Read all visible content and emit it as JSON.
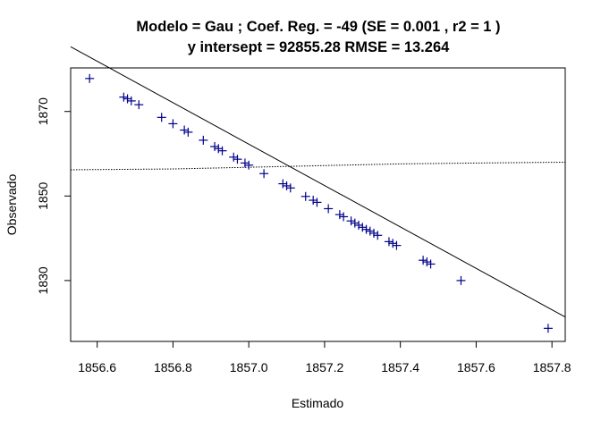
{
  "chart_data": {
    "type": "scatter",
    "title_line1": "Modelo =  Gau ; Coef. Reg. =  -49  (SE =  0.001 , r2 =  1 )",
    "title_line2": "y intersept =  92855.28 RMSE =  13.264",
    "xlabel": "Estimado",
    "ylabel": "Observado",
    "xlim": [
      1856.53,
      1857.835
    ],
    "ylim": [
      1815.6,
      1880.3
    ],
    "x_ticks": [
      1856.6,
      1856.8,
      1857.0,
      1857.2,
      1857.4,
      1857.6,
      1857.8
    ],
    "x_tick_labels": [
      "1856.6",
      "1856.8",
      "1857.0",
      "1857.2",
      "1857.4",
      "1857.6",
      "1857.8"
    ],
    "y_ticks": [
      1830,
      1850,
      1870
    ],
    "y_tick_labels": [
      "1830",
      "1850",
      "1870"
    ],
    "fit_line": {
      "intercept": 92855.28,
      "slope": -49
    },
    "smooth_line": [
      [
        1856.53,
        1856.2
      ],
      [
        1856.8,
        1856.4
      ],
      [
        1857.0,
        1856.8
      ],
      [
        1857.2,
        1857.2
      ],
      [
        1857.4,
        1857.6
      ],
      [
        1857.6,
        1857.8
      ],
      [
        1857.835,
        1858.0
      ]
    ],
    "points": [
      {
        "x": 1856.58,
        "y": 1877.8
      },
      {
        "x": 1856.67,
        "y": 1873.4
      },
      {
        "x": 1856.68,
        "y": 1873.0
      },
      {
        "x": 1856.69,
        "y": 1872.5
      },
      {
        "x": 1856.71,
        "y": 1871.6
      },
      {
        "x": 1856.77,
        "y": 1868.6
      },
      {
        "x": 1856.8,
        "y": 1867.1
      },
      {
        "x": 1856.83,
        "y": 1865.6
      },
      {
        "x": 1856.84,
        "y": 1865.1
      },
      {
        "x": 1856.88,
        "y": 1863.2
      },
      {
        "x": 1856.91,
        "y": 1861.7
      },
      {
        "x": 1856.92,
        "y": 1861.2
      },
      {
        "x": 1856.93,
        "y": 1860.7
      },
      {
        "x": 1856.96,
        "y": 1859.2
      },
      {
        "x": 1856.97,
        "y": 1858.7
      },
      {
        "x": 1856.99,
        "y": 1857.8
      },
      {
        "x": 1857.0,
        "y": 1857.3
      },
      {
        "x": 1857.04,
        "y": 1855.3
      },
      {
        "x": 1857.09,
        "y": 1852.9
      },
      {
        "x": 1857.1,
        "y": 1852.4
      },
      {
        "x": 1857.11,
        "y": 1851.9
      },
      {
        "x": 1857.15,
        "y": 1849.9
      },
      {
        "x": 1857.17,
        "y": 1849.0
      },
      {
        "x": 1857.18,
        "y": 1848.5
      },
      {
        "x": 1857.21,
        "y": 1847.0
      },
      {
        "x": 1857.24,
        "y": 1845.6
      },
      {
        "x": 1857.25,
        "y": 1845.1
      },
      {
        "x": 1857.27,
        "y": 1844.1
      },
      {
        "x": 1857.28,
        "y": 1843.6
      },
      {
        "x": 1857.29,
        "y": 1843.1
      },
      {
        "x": 1857.3,
        "y": 1842.6
      },
      {
        "x": 1857.31,
        "y": 1842.1
      },
      {
        "x": 1857.32,
        "y": 1841.7
      },
      {
        "x": 1857.33,
        "y": 1841.2
      },
      {
        "x": 1857.34,
        "y": 1840.7
      },
      {
        "x": 1857.37,
        "y": 1839.2
      },
      {
        "x": 1857.38,
        "y": 1838.8
      },
      {
        "x": 1857.39,
        "y": 1838.3
      },
      {
        "x": 1857.46,
        "y": 1834.8
      },
      {
        "x": 1857.47,
        "y": 1834.4
      },
      {
        "x": 1857.48,
        "y": 1833.9
      },
      {
        "x": 1857.56,
        "y": 1830.0
      },
      {
        "x": 1857.79,
        "y": 1818.7
      }
    ],
    "colors": {
      "points": "#00008b",
      "lines": "#000000",
      "axes": "#000000"
    },
    "grid": false
  }
}
